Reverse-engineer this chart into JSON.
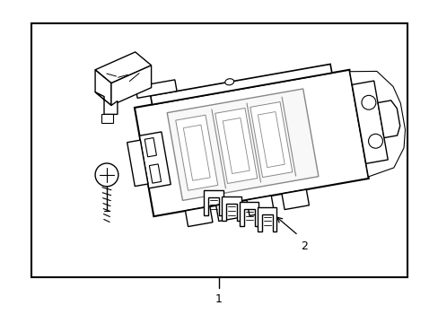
{
  "bg_color": "#ffffff",
  "line_color": "#000000",
  "gray_color": "#888888",
  "fig_width": 4.89,
  "fig_height": 3.6,
  "dpi": 100,
  "label1_text": "1",
  "label2_text": "2"
}
